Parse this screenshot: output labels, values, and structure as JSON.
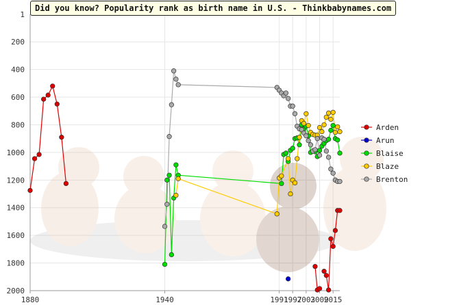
{
  "chart_data": {
    "type": "line",
    "title": "Did you know? Popularity rank as birth name in U.S. - Thinkbabynames.com",
    "xlabel": "",
    "ylabel": "",
    "xlim": [
      1880,
      2018
    ],
    "ylim": [
      1,
      2000
    ],
    "y_inverted": true,
    "y_ticks": [
      1,
      200,
      400,
      600,
      800,
      1000,
      1200,
      1400,
      1600,
      1800,
      2000
    ],
    "x_ticks": [
      1880,
      1940,
      1991,
      1997,
      2003,
      2009,
      2015
    ],
    "x_tick_positions": [
      1880,
      1940,
      1991,
      1997,
      2003,
      2009,
      2015
    ],
    "grid": true,
    "legend": "right",
    "series": [
      {
        "name": "Arden",
        "color": "#dd0000",
        "segments": [
          [
            [
              1880,
              1275
            ],
            [
              1882,
              1045
            ],
            [
              1884,
              1015
            ],
            [
              1886,
              615
            ],
            [
              1888,
              585
            ],
            [
              1890,
              520
            ],
            [
              1892,
              650
            ],
            [
              1894,
              890
            ],
            [
              1896,
              1225
            ]
          ],
          [
            [
              2007,
              1825
            ],
            [
              2008,
              1995
            ],
            [
              2009,
              1985
            ]
          ],
          [
            [
              2011,
              1860
            ],
            [
              2012,
              1890
            ],
            [
              2013,
              1995
            ],
            [
              2014,
              1625
            ],
            [
              2015,
              1680
            ],
            [
              2016,
              1565
            ],
            [
              2017,
              1420
            ],
            [
              2018,
              1420
            ]
          ]
        ]
      },
      {
        "name": "Arun",
        "color": "#0000cc",
        "segments": [
          [
            [
              1995,
              1915
            ]
          ]
        ]
      },
      {
        "name": "Blaise",
        "color": "#00dd00",
        "segments": [
          [
            [
              1940,
              1810
            ],
            [
              1941,
              1200
            ],
            [
              1942,
              1165
            ],
            [
              1943,
              1740
            ],
            [
              1944,
              1330
            ],
            [
              1945,
              1090
            ],
            [
              1946,
              1165
            ],
            [
              1992,
              1225
            ],
            [
              1993,
              1015
            ],
            [
              1994,
              1005
            ],
            [
              1995,
              1065
            ],
            [
              1996,
              985
            ],
            [
              1997,
              970
            ],
            [
              1998,
              900
            ],
            [
              1999,
              895
            ],
            [
              2000,
              945
            ],
            [
              2001,
              800
            ],
            [
              2002,
              830
            ],
            [
              2003,
              810
            ],
            [
              2004,
              880
            ],
            [
              2005,
              1000
            ],
            [
              2006,
              990
            ],
            [
              2007,
              995
            ],
            [
              2008,
              1030
            ],
            [
              2009,
              985
            ],
            [
              2010,
              955
            ],
            [
              2011,
              935
            ],
            [
              2012,
              915
            ],
            [
              2013,
              905
            ],
            [
              2014,
              840
            ],
            [
              2015,
              805
            ],
            [
              2016,
              900
            ],
            [
              2017,
              910
            ],
            [
              2018,
              1005
            ]
          ]
        ]
      },
      {
        "name": "Blaze",
        "color": "#ffcc00",
        "segments": [
          [
            [
              1945,
              1310
            ],
            [
              1946,
              1190
            ],
            [
              1990,
              1445
            ],
            [
              1991,
              1185
            ],
            [
              1992,
              1170
            ],
            [
              1995,
              1045
            ],
            [
              1996,
              1300
            ],
            [
              1997,
              1200
            ],
            [
              1998,
              1220
            ],
            [
              1999,
              1045
            ],
            [
              2000,
              890
            ],
            [
              2001,
              770
            ],
            [
              2002,
              790
            ],
            [
              2003,
              720
            ],
            [
              2004,
              805
            ],
            [
              2005,
              855
            ],
            [
              2006,
              870
            ],
            [
              2007,
              875
            ],
            [
              2008,
              875
            ],
            [
              2009,
              820
            ],
            [
              2010,
              850
            ],
            [
              2011,
              800
            ],
            [
              2012,
              745
            ],
            [
              2013,
              715
            ],
            [
              2014,
              760
            ],
            [
              2015,
              710
            ],
            [
              2016,
              855
            ],
            [
              2017,
              815
            ],
            [
              2018,
              850
            ]
          ]
        ]
      },
      {
        "name": "Brenton",
        "color": "#aaaaaa",
        "segments": [
          [
            [
              1940,
              1535
            ],
            [
              1941,
              1375
            ],
            [
              1942,
              885
            ],
            [
              1943,
              655
            ],
            [
              1944,
              410
            ],
            [
              1945,
              470
            ],
            [
              1946,
              510
            ],
            [
              1990,
              530
            ],
            [
              1991,
              550
            ],
            [
              1992,
              570
            ],
            [
              1993,
              590
            ],
            [
              1994,
              570
            ],
            [
              1995,
              610
            ],
            [
              1996,
              665
            ],
            [
              1997,
              665
            ],
            [
              1998,
              720
            ],
            [
              1999,
              810
            ],
            [
              2000,
              830
            ],
            [
              2001,
              835
            ],
            [
              2002,
              860
            ],
            [
              2003,
              880
            ],
            [
              2004,
              915
            ],
            [
              2005,
              945
            ],
            [
              2006,
              990
            ],
            [
              2007,
              980
            ],
            [
              2008,
              900
            ],
            [
              2009,
              1020
            ],
            [
              2010,
              895
            ],
            [
              2011,
              905
            ],
            [
              2012,
              990
            ],
            [
              2013,
              1035
            ],
            [
              2014,
              1120
            ],
            [
              2015,
              1150
            ],
            [
              2016,
              1200
            ],
            [
              2017,
              1210
            ],
            [
              2018,
              1210
            ]
          ]
        ]
      }
    ]
  }
}
